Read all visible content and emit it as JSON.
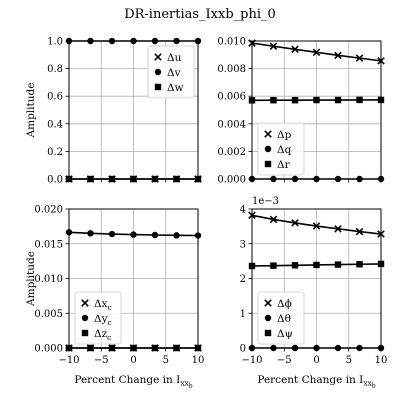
{
  "figure": {
    "title": "DR-inertias_Ixxb_phi_0"
  },
  "chart_data": [
    {
      "type": "line",
      "panel": "top-left",
      "x": [
        -10,
        -6.67,
        -3.33,
        0,
        3.33,
        6.67,
        10
      ],
      "xlim": [
        -10,
        10
      ],
      "ylim": [
        0,
        1.0
      ],
      "xticks": [
        -10,
        -5,
        0,
        5,
        10
      ],
      "xtick_labels": [
        "",
        "",
        "",
        "",
        ""
      ],
      "yticks": [
        0,
        0.2,
        0.4,
        0.6,
        0.8,
        1.0
      ],
      "ytick_labels": [
        "0.0",
        "0.2",
        "0.4",
        "0.6",
        "0.8",
        "1.0"
      ],
      "ylabel": "Amplitude",
      "xlabel": "",
      "multiplier": "",
      "legend_position": "upper-right",
      "grid": true,
      "series": [
        {
          "name": "Δu",
          "marker": "x",
          "values": [
            0,
            0,
            0,
            0,
            0,
            0,
            0
          ]
        },
        {
          "name": "Δv",
          "marker": "circle",
          "values": [
            1,
            1,
            1,
            1,
            1,
            1,
            1
          ]
        },
        {
          "name": "Δw",
          "marker": "square",
          "values": [
            0,
            0,
            0,
            0,
            0,
            0,
            0
          ]
        }
      ]
    },
    {
      "type": "line",
      "panel": "top-right",
      "x": [
        -10,
        -6.67,
        -3.33,
        0,
        3.33,
        6.67,
        10
      ],
      "xlim": [
        -10,
        10
      ],
      "ylim": [
        0,
        0.01
      ],
      "xticks": [
        -10,
        -5,
        0,
        5,
        10
      ],
      "xtick_labels": [
        "",
        "",
        "",
        "",
        ""
      ],
      "yticks": [
        0,
        0.002,
        0.004,
        0.006,
        0.008,
        0.01
      ],
      "ytick_labels": [
        "0.000",
        "0.002",
        "0.004",
        "0.006",
        "0.008",
        "0.010"
      ],
      "ylabel": "",
      "xlabel": "",
      "multiplier": "",
      "legend_position": "lower-left",
      "grid": true,
      "series": [
        {
          "name": "Δp",
          "marker": "x",
          "values": [
            0.00985,
            0.00962,
            0.0094,
            0.00918,
            0.00896,
            0.00876,
            0.00856
          ]
        },
        {
          "name": "Δq",
          "marker": "circle",
          "values": [
            0,
            0,
            0,
            0,
            0,
            0,
            0
          ]
        },
        {
          "name": "Δr",
          "marker": "square",
          "values": [
            0.0057,
            0.00571,
            0.00571,
            0.00572,
            0.00572,
            0.00573,
            0.00573
          ]
        }
      ]
    },
    {
      "type": "line",
      "panel": "bottom-left",
      "x": [
        -10,
        -6.67,
        -3.33,
        0,
        3.33,
        6.67,
        10
      ],
      "xlim": [
        -10,
        10
      ],
      "ylim": [
        0,
        0.02
      ],
      "xticks": [
        -10,
        -5,
        0,
        5,
        10
      ],
      "xtick_labels": [
        "−10",
        "−5",
        "0",
        "5",
        "10"
      ],
      "yticks": [
        0,
        0.005,
        0.01,
        0.015,
        0.02
      ],
      "ytick_labels": [
        "0.000",
        "0.005",
        "0.010",
        "0.015",
        "0.020"
      ],
      "ylabel": "Amplitude",
      "xlabel": "Percent Change in I",
      "xlabel_sub": "xx",
      "xlabel_subsub": "b",
      "multiplier": "",
      "legend_position": "lower-left",
      "grid": true,
      "series": [
        {
          "name": "Δx",
          "name_sub": "c",
          "marker": "x",
          "values": [
            0,
            0,
            0,
            0,
            0,
            0,
            0
          ]
        },
        {
          "name": "Δy",
          "name_sub": "c",
          "marker": "circle",
          "values": [
            0.01665,
            0.0165,
            0.0164,
            0.01632,
            0.01626,
            0.01621,
            0.01618
          ]
        },
        {
          "name": "Δz",
          "name_sub": "c",
          "marker": "square",
          "values": [
            0,
            0,
            0,
            0,
            0,
            0,
            0
          ]
        }
      ]
    },
    {
      "type": "line",
      "panel": "bottom-right",
      "x": [
        -10,
        -6.67,
        -3.33,
        0,
        3.33,
        6.67,
        10
      ],
      "xlim": [
        -10,
        10
      ],
      "ylim": [
        0,
        4
      ],
      "xticks": [
        -10,
        -5,
        0,
        5,
        10
      ],
      "xtick_labels": [
        "−10",
        "−5",
        "0",
        "5",
        "10"
      ],
      "yticks": [
        0,
        1,
        2,
        3,
        4
      ],
      "ytick_labels": [
        "0",
        "1",
        "2",
        "3",
        "4"
      ],
      "ylabel": "",
      "xlabel": "Percent Change in I",
      "xlabel_sub": "xx",
      "xlabel_subsub": "b",
      "multiplier": "1e−3",
      "legend_position": "lower-left",
      "grid": true,
      "series": [
        {
          "name": "Δϕ",
          "marker": "x",
          "values": [
            3.82,
            3.7,
            3.6,
            3.51,
            3.43,
            3.35,
            3.28
          ]
        },
        {
          "name": "Δθ",
          "marker": "circle",
          "values": [
            0,
            0,
            0,
            0,
            0,
            0,
            0
          ]
        },
        {
          "name": "Δψ",
          "marker": "square",
          "values": [
            2.36,
            2.37,
            2.38,
            2.39,
            2.4,
            2.41,
            2.42
          ]
        }
      ]
    }
  ]
}
